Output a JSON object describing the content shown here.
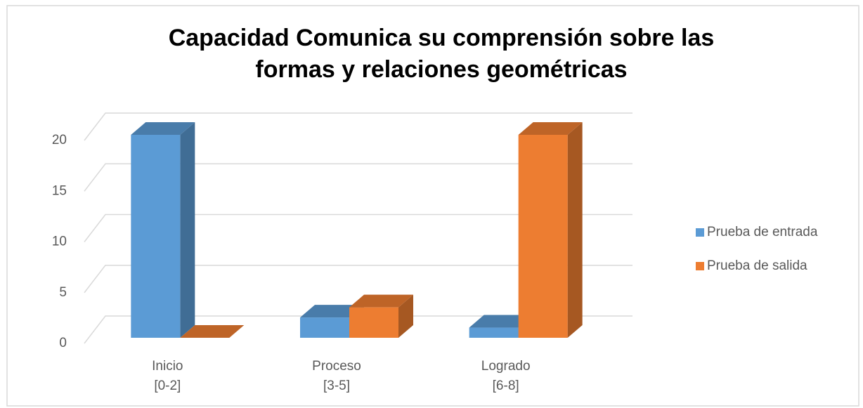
{
  "chart_data": {
    "type": "bar3d",
    "title": [
      "Capacidad Comunica su comprensión sobre las",
      "formas y relaciones geométricas"
    ],
    "categories": [
      [
        "Inicio",
        "[0-2]"
      ],
      [
        "Proceso",
        "[3-5]"
      ],
      [
        "Logrado",
        "[6-8]"
      ]
    ],
    "series": [
      {
        "name": "Prueba de entrada",
        "color": "#5b9bd5",
        "values": [
          20,
          2,
          1
        ]
      },
      {
        "name": "Prueba de salida",
        "color": "#ed7d31",
        "values": [
          0,
          3,
          20
        ]
      }
    ],
    "ylim": [
      0,
      20
    ],
    "yticks": [
      0,
      5,
      10,
      15,
      20
    ],
    "grid": true,
    "legend": "right"
  }
}
